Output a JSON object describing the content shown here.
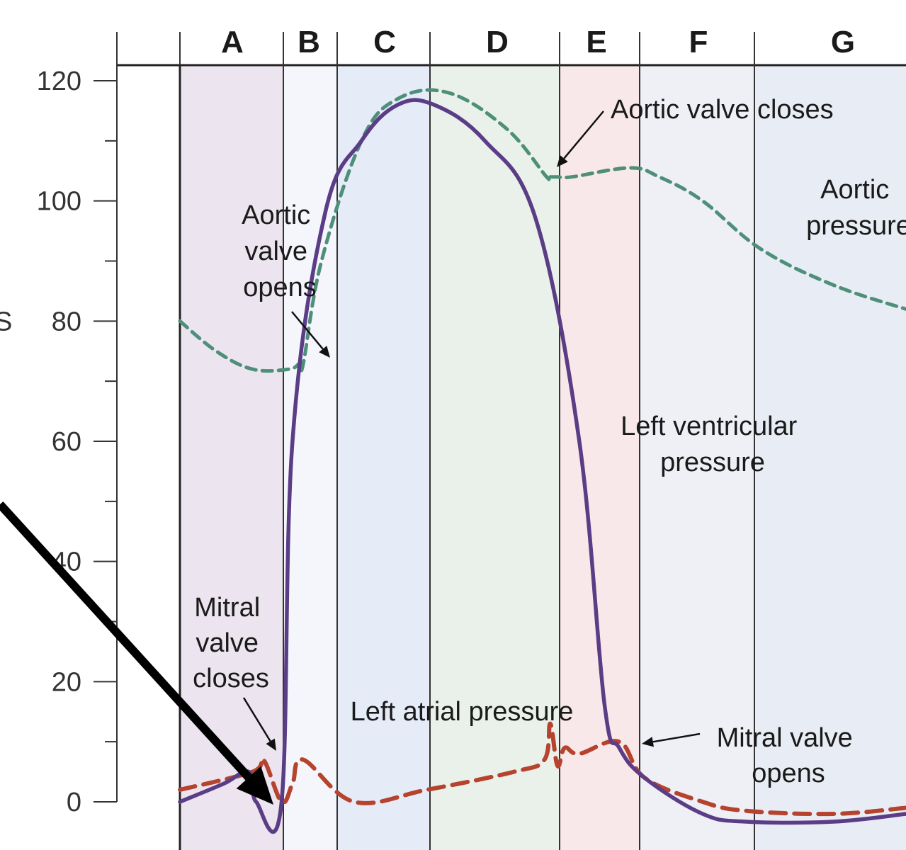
{
  "chart_data": {
    "type": "line",
    "phases": [
      "A",
      "B",
      "C",
      "D",
      "E",
      "F",
      "G"
    ],
    "y_ticks": [
      "120",
      "100",
      "80",
      "60",
      "40",
      "20",
      "0"
    ],
    "ylim": [
      0,
      120
    ],
    "grid": false,
    "axis_edge_fragment": "S",
    "colors": {
      "ventricular": "#5b3d86",
      "aortic": "#4e8f7a",
      "atrial": "#b5432e",
      "pointer": "#000000",
      "phase_bg": [
        "#ece4ee",
        "#f4f6fc",
        "#e6ebf8",
        "#e9f1ea",
        "#f9e8ea",
        "#eef0f6",
        "#e8ecf4"
      ]
    },
    "series": [
      {
        "key": "ventricular",
        "style": "solid",
        "x": [
          0,
          6,
          9.5,
          10.5,
          14,
          15.5,
          20,
          25,
          30,
          35,
          42,
          49,
          55,
          58.5,
          60.5,
          64,
          72,
          78,
          90,
          100
        ],
        "y": [
          0,
          3,
          5,
          0,
          0,
          60,
          98,
          110,
          116,
          116,
          110,
          97,
          60,
          16,
          9,
          4,
          -2,
          -3.3,
          -3.3,
          -2
        ]
      },
      {
        "key": "aortic",
        "style": "dashed",
        "x": [
          0,
          5,
          10,
          15,
          16.5,
          17,
          19.5,
          25,
          30,
          37,
          45,
          50.5,
          51,
          52,
          54,
          62,
          66,
          72,
          80,
          90,
          100
        ],
        "y": [
          80,
          75,
          72,
          72,
          73,
          73,
          90,
          110,
          117,
          118,
          112,
          104,
          104,
          104,
          104,
          105.5,
          104,
          100,
          92,
          86,
          82
        ]
      },
      {
        "key": "atrial",
        "style": "dashed",
        "x": [
          0,
          10,
          11.5,
          14,
          15.5,
          17,
          24,
          34,
          46,
          50.2,
          51,
          52,
          53,
          55,
          60.5,
          64,
          72,
          78,
          90,
          100
        ],
        "y": [
          2,
          5,
          7,
          0,
          3,
          7,
          0,
          2,
          5,
          7,
          13,
          6,
          9,
          8,
          10,
          4,
          0,
          -1.5,
          -2,
          -1
        ]
      }
    ],
    "annotations": [
      {
        "key": "aortic_opens",
        "lines": [
          "Aortic",
          "valve",
          "opens"
        ]
      },
      {
        "key": "aortic_closes",
        "lines": [
          "Aortic valve closes"
        ]
      },
      {
        "key": "aortic_pressure",
        "lines": [
          "Aortic",
          "pressure"
        ]
      },
      {
        "key": "lv_pressure",
        "lines": [
          "Left ventricular",
          "pressure"
        ]
      },
      {
        "key": "mitral_closes",
        "lines": [
          "Mitral",
          "valve",
          "closes"
        ]
      },
      {
        "key": "atrial_pressure",
        "lines": [
          "Left atrial pressure"
        ]
      },
      {
        "key": "mitral_opens",
        "lines": [
          "Mitral valve",
          "opens"
        ]
      }
    ]
  }
}
